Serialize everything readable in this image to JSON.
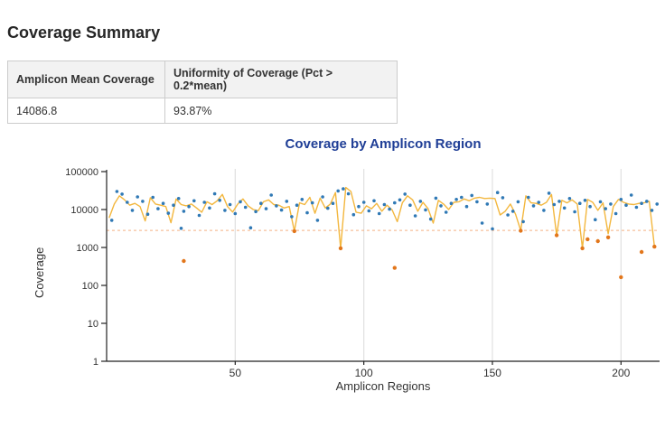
{
  "page": {
    "heading": "Coverage Summary"
  },
  "summary_table": {
    "headers": [
      "Amplicon Mean Coverage",
      "Uniformity of Coverage (Pct > 0.2*mean)"
    ],
    "rows": [
      [
        "14086.8",
        "93.87%"
      ]
    ]
  },
  "chart_data": {
    "type": "scatter",
    "title": "Coverage by Amplicon Region",
    "xlabel": "Amplicon Regions",
    "ylabel": "Coverage",
    "y_scale": "log",
    "ylim": [
      1,
      100000
    ],
    "xlim": [
      0,
      215
    ],
    "xticks": [
      50,
      100,
      150,
      200
    ],
    "yticks": [
      {
        "value": 1,
        "label": "1"
      },
      {
        "value": 10,
        "label": "10"
      },
      {
        "value": 100,
        "label": "100"
      },
      {
        "value": 1000,
        "label": "1000"
      },
      {
        "value": 10000,
        "label": "10000"
      },
      {
        "value": 100000,
        "label": "100000"
      }
    ],
    "grid": "vertical",
    "legend": "none",
    "colors": {
      "title": "#1f3e96",
      "axis": "#222222",
      "tick_text": "#333333",
      "grid": "#e0e0e0"
    },
    "threshold": {
      "value": 2817.4,
      "color": "#f4b183",
      "style": "dashed"
    },
    "series": [
      {
        "name": "amplicon-coverage-line",
        "type": "line",
        "color": "#f3b73e",
        "points": [
          [
            1,
            6000
          ],
          [
            3,
            14000
          ],
          [
            5,
            23000
          ],
          [
            7,
            18000
          ],
          [
            9,
            13000
          ],
          [
            11,
            14500
          ],
          [
            13,
            12000
          ],
          [
            15,
            5000
          ],
          [
            17,
            20500
          ],
          [
            19,
            14000
          ],
          [
            21,
            13000
          ],
          [
            23,
            12000
          ],
          [
            25,
            4500
          ],
          [
            27,
            19000
          ],
          [
            29,
            13500
          ],
          [
            31,
            12500
          ],
          [
            33,
            14000
          ],
          [
            35,
            11000
          ],
          [
            37,
            8500
          ],
          [
            39,
            16000
          ],
          [
            41,
            13500
          ],
          [
            43,
            17000
          ],
          [
            45,
            25000
          ],
          [
            47,
            12000
          ],
          [
            49,
            8600
          ],
          [
            51,
            14000
          ],
          [
            53,
            19000
          ],
          [
            55,
            12500
          ],
          [
            57,
            10000
          ],
          [
            59,
            9300
          ],
          [
            61,
            16000
          ],
          [
            63,
            18000
          ],
          [
            65,
            13500
          ],
          [
            67,
            13000
          ],
          [
            69,
            11000
          ],
          [
            71,
            12000
          ],
          [
            73,
            2700
          ],
          [
            75,
            15000
          ],
          [
            77,
            13500
          ],
          [
            79,
            21000
          ],
          [
            81,
            8000
          ],
          [
            83,
            20000
          ],
          [
            85,
            11000
          ],
          [
            87,
            14000
          ],
          [
            89,
            28000
          ],
          [
            91,
            950
          ],
          [
            93,
            38000
          ],
          [
            95,
            30000
          ],
          [
            97,
            8500
          ],
          [
            99,
            8000
          ],
          [
            101,
            12500
          ],
          [
            103,
            10500
          ],
          [
            105,
            14500
          ],
          [
            107,
            9000
          ],
          [
            109,
            13000
          ],
          [
            111,
            9800
          ],
          [
            113,
            4800
          ],
          [
            115,
            15000
          ],
          [
            117,
            23000
          ],
          [
            119,
            18000
          ],
          [
            121,
            9000
          ],
          [
            123,
            15500
          ],
          [
            125,
            10500
          ],
          [
            127,
            4400
          ],
          [
            129,
            17500
          ],
          [
            131,
            14000
          ],
          [
            133,
            10000
          ],
          [
            135,
            15500
          ],
          [
            137,
            16000
          ],
          [
            139,
            19000
          ],
          [
            141,
            17000
          ],
          [
            143,
            20000
          ],
          [
            145,
            21000
          ],
          [
            147,
            19500
          ],
          [
            149,
            20000
          ],
          [
            151,
            19500
          ],
          [
            153,
            7200
          ],
          [
            155,
            9000
          ],
          [
            157,
            14000
          ],
          [
            159,
            7500
          ],
          [
            161,
            2800
          ],
          [
            163,
            23000
          ],
          [
            165,
            15000
          ],
          [
            167,
            14500
          ],
          [
            169,
            13000
          ],
          [
            171,
            15500
          ],
          [
            173,
            25000
          ],
          [
            175,
            2100
          ],
          [
            177,
            17500
          ],
          [
            179,
            15000
          ],
          [
            181,
            18000
          ],
          [
            183,
            14000
          ],
          [
            185,
            950
          ],
          [
            187,
            18500
          ],
          [
            189,
            15500
          ],
          [
            191,
            9500
          ],
          [
            193,
            15000
          ],
          [
            195,
            2300
          ],
          [
            197,
            12000
          ],
          [
            199,
            18500
          ],
          [
            201,
            15500
          ],
          [
            203,
            14000
          ],
          [
            205,
            13500
          ],
          [
            207,
            14500
          ],
          [
            209,
            15000
          ],
          [
            211,
            16500
          ],
          [
            213,
            1050
          ]
        ]
      },
      {
        "name": "amplicon-coverage-points",
        "type": "scatter",
        "color": "#3079b5",
        "marker_size": 1.8,
        "points": [
          [
            2,
            5200
          ],
          [
            4,
            30000
          ],
          [
            6,
            25500
          ],
          [
            8,
            15500
          ],
          [
            10,
            9500
          ],
          [
            12,
            21500
          ],
          [
            14,
            16500
          ],
          [
            16,
            7500
          ],
          [
            18,
            21000
          ],
          [
            20,
            10500
          ],
          [
            22,
            14500
          ],
          [
            24,
            8000
          ],
          [
            26,
            13000
          ],
          [
            28,
            19500
          ],
          [
            29,
            3200
          ],
          [
            30,
            9000
          ],
          [
            32,
            12000
          ],
          [
            34,
            17000
          ],
          [
            36,
            7000
          ],
          [
            38,
            15500
          ],
          [
            40,
            11000
          ],
          [
            42,
            26000
          ],
          [
            44,
            17500
          ],
          [
            46,
            9500
          ],
          [
            48,
            13500
          ],
          [
            50,
            7800
          ],
          [
            52,
            16000
          ],
          [
            54,
            11500
          ],
          [
            56,
            3300
          ],
          [
            58,
            8800
          ],
          [
            60,
            14500
          ],
          [
            62,
            10500
          ],
          [
            64,
            24000
          ],
          [
            66,
            12500
          ],
          [
            68,
            9700
          ],
          [
            70,
            16500
          ],
          [
            72,
            6500
          ],
          [
            74,
            13000
          ],
          [
            76,
            18500
          ],
          [
            78,
            8200
          ],
          [
            80,
            15000
          ],
          [
            82,
            5200
          ],
          [
            84,
            21500
          ],
          [
            86,
            10800
          ],
          [
            88,
            14500
          ],
          [
            90,
            31000
          ],
          [
            92,
            35000
          ],
          [
            94,
            26000
          ],
          [
            96,
            7300
          ],
          [
            98,
            12000
          ],
          [
            100,
            15500
          ],
          [
            102,
            9200
          ],
          [
            104,
            17000
          ],
          [
            106,
            7800
          ],
          [
            108,
            13500
          ],
          [
            110,
            10200
          ],
          [
            112,
            15000
          ],
          [
            114,
            18000
          ],
          [
            116,
            25500
          ],
          [
            118,
            13000
          ],
          [
            120,
            6800
          ],
          [
            122,
            16500
          ],
          [
            124,
            9800
          ],
          [
            126,
            5600
          ],
          [
            128,
            20000
          ],
          [
            130,
            12500
          ],
          [
            132,
            8500
          ],
          [
            134,
            14500
          ],
          [
            136,
            18500
          ],
          [
            138,
            21000
          ],
          [
            140,
            12000
          ],
          [
            142,
            23500
          ],
          [
            144,
            16000
          ],
          [
            146,
            4400
          ],
          [
            148,
            14000
          ],
          [
            150,
            3100
          ],
          [
            152,
            28000
          ],
          [
            154,
            20500
          ],
          [
            156,
            7200
          ],
          [
            158,
            9000
          ],
          [
            160,
            16000
          ],
          [
            162,
            4800
          ],
          [
            164,
            21000
          ],
          [
            166,
            12500
          ],
          [
            168,
            15500
          ],
          [
            170,
            9500
          ],
          [
            172,
            27000
          ],
          [
            174,
            13500
          ],
          [
            176,
            16500
          ],
          [
            178,
            11000
          ],
          [
            180,
            19500
          ],
          [
            182,
            8700
          ],
          [
            184,
            14500
          ],
          [
            186,
            17500
          ],
          [
            188,
            12000
          ],
          [
            190,
            5400
          ],
          [
            192,
            16000
          ],
          [
            194,
            10500
          ],
          [
            196,
            14000
          ],
          [
            198,
            7800
          ],
          [
            200,
            18500
          ],
          [
            202,
            13000
          ],
          [
            204,
            24000
          ],
          [
            206,
            11500
          ],
          [
            208,
            14500
          ],
          [
            210,
            16500
          ],
          [
            212,
            9500
          ],
          [
            214,
            14000
          ]
        ]
      },
      {
        "name": "below-threshold-points",
        "type": "scatter",
        "color": "#e2761b",
        "marker_size": 2.2,
        "points": [
          [
            30,
            440
          ],
          [
            73,
            2700
          ],
          [
            91,
            950
          ],
          [
            112,
            290
          ],
          [
            161,
            2750
          ],
          [
            175,
            2100
          ],
          [
            185,
            950
          ],
          [
            187,
            1650
          ],
          [
            191,
            1470
          ],
          [
            195,
            1850
          ],
          [
            200,
            165
          ],
          [
            208,
            760
          ],
          [
            213,
            1050
          ]
        ]
      }
    ]
  }
}
